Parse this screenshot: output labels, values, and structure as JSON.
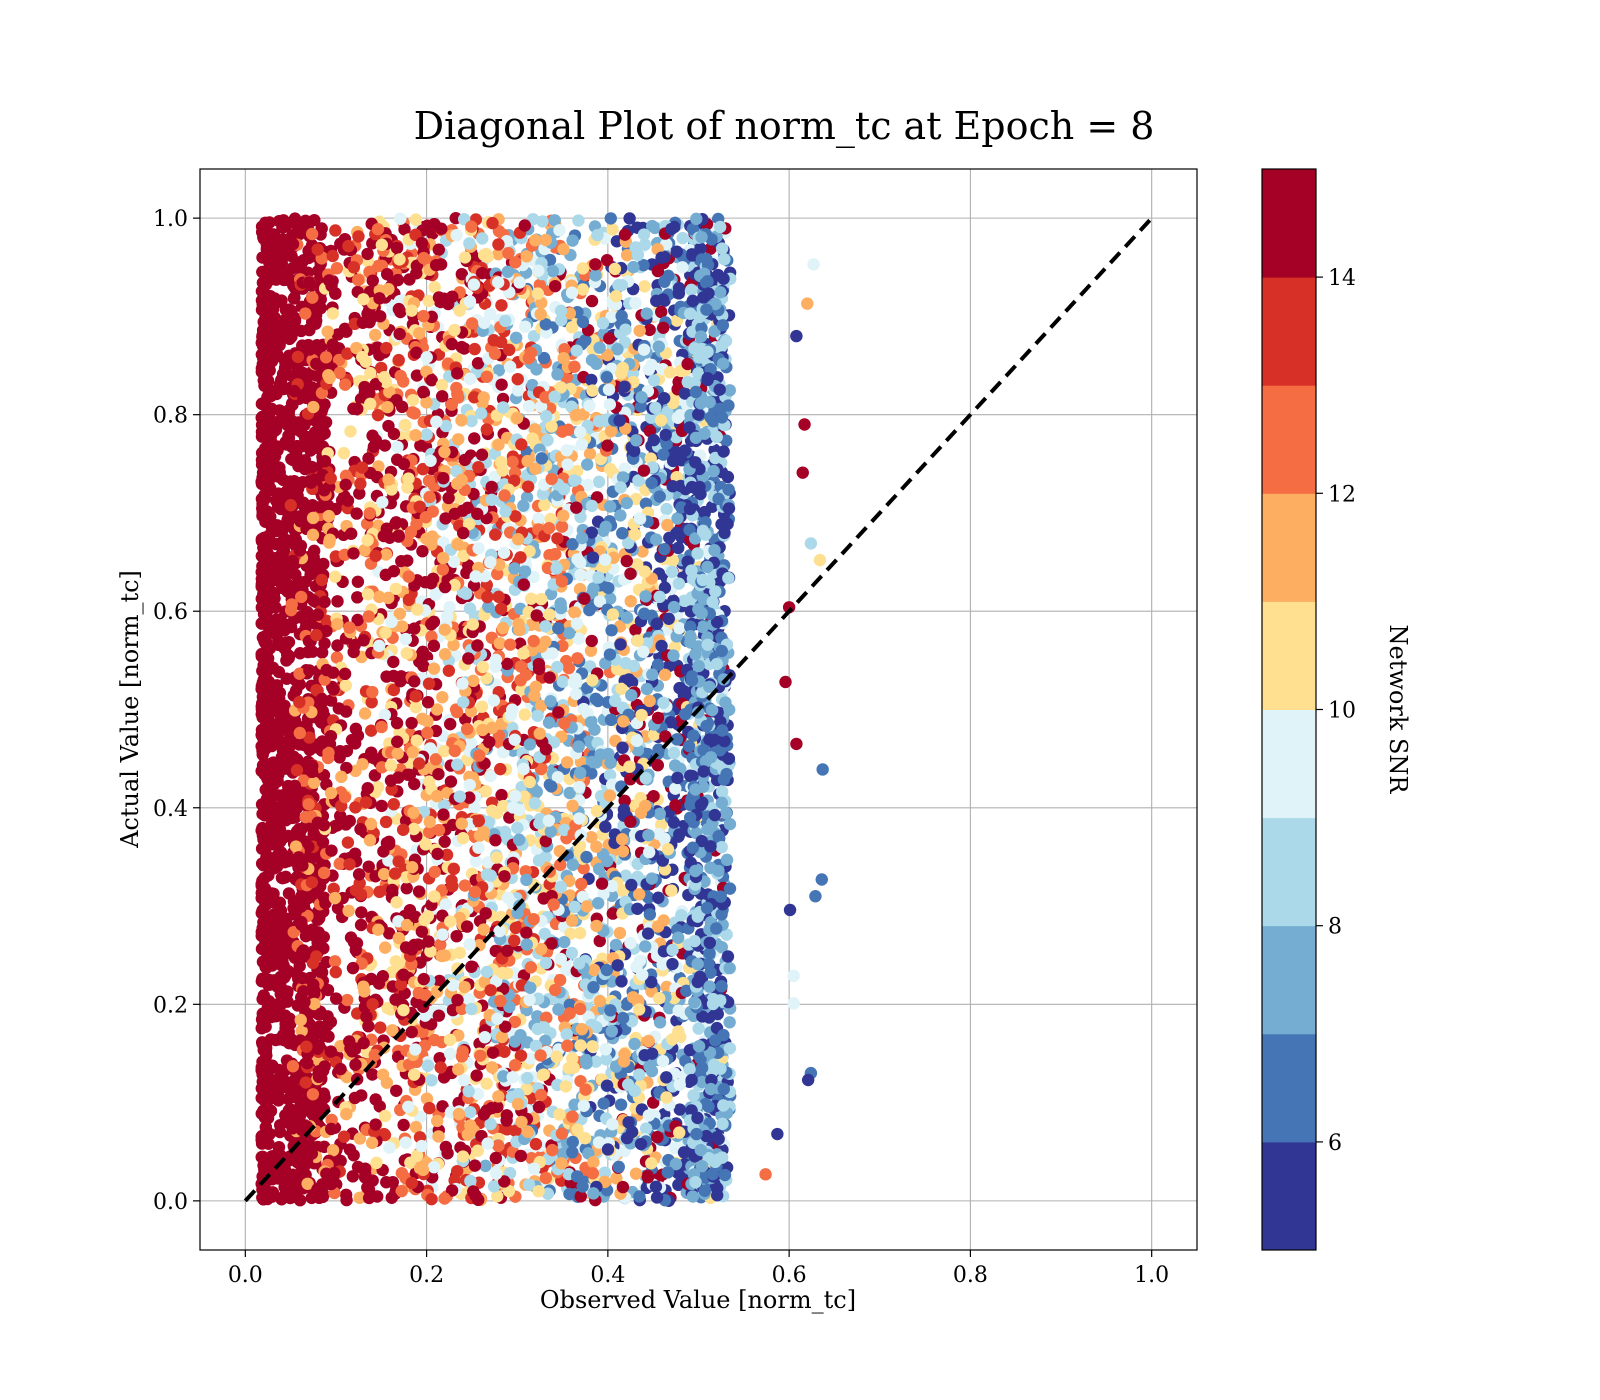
{
  "chart_data": {
    "type": "scatter",
    "title": "Diagonal Plot of norm_tc at Epoch = 8",
    "xlabel": "Observed Value [norm_tc]",
    "ylabel": "Actual Value [norm_tc]",
    "xlim": [
      -0.05,
      1.05
    ],
    "ylim": [
      -0.05,
      1.05
    ],
    "x_ticks": [
      "0.0",
      "0.2",
      "0.4",
      "0.6",
      "0.8",
      "1.0"
    ],
    "y_ticks": [
      "0.0",
      "0.2",
      "0.4",
      "0.6",
      "0.8",
      "1.0"
    ],
    "grid": true,
    "reference_line": {
      "style": "dashed",
      "color": "#000000",
      "from": [
        0,
        0
      ],
      "to": [
        1,
        1
      ]
    },
    "colorbar": {
      "label": "Network SNR",
      "range": [
        5,
        15
      ],
      "ticks": [
        "6",
        "8",
        "10",
        "12",
        "14"
      ],
      "colors": [
        "#313695",
        "#4575b4",
        "#74add1",
        "#abd9e9",
        "#e0f3f8",
        "#fee090",
        "#fdae61",
        "#f46d43",
        "#d73027",
        "#a50026"
      ]
    },
    "point_distribution": {
      "x_range": [
        0.02,
        0.55
      ],
      "y_range": [
        0.0,
        1.0
      ],
      "outliers_x_max": 0.64,
      "snr_trend": "high SNR (~15) near x=0.02-0.08, decreasing to low SNR (~5-8) near x=0.5",
      "sample_outliers": [
        {
          "x": 0.627,
          "y": 0.953,
          "snr": 9
        },
        {
          "x": 0.62,
          "y": 0.913,
          "snr": 11
        },
        {
          "x": 0.608,
          "y": 0.88,
          "snr": 5.5
        },
        {
          "x": 0.617,
          "y": 0.79,
          "snr": 14.8
        },
        {
          "x": 0.615,
          "y": 0.741,
          "snr": 14.8
        },
        {
          "x": 0.624,
          "y": 0.669,
          "snr": 8
        },
        {
          "x": 0.634,
          "y": 0.652,
          "snr": 10.5
        },
        {
          "x": 0.6,
          "y": 0.604,
          "snr": 14.8
        },
        {
          "x": 0.596,
          "y": 0.528,
          "snr": 14.8
        },
        {
          "x": 0.608,
          "y": 0.465,
          "snr": 14.8
        },
        {
          "x": 0.637,
          "y": 0.439,
          "snr": 6.5
        },
        {
          "x": 0.636,
          "y": 0.327,
          "snr": 6.5
        },
        {
          "x": 0.629,
          "y": 0.31,
          "snr": 6.5
        },
        {
          "x": 0.601,
          "y": 0.296,
          "snr": 5.5
        },
        {
          "x": 0.605,
          "y": 0.229,
          "snr": 9
        },
        {
          "x": 0.605,
          "y": 0.201,
          "snr": 9
        },
        {
          "x": 0.624,
          "y": 0.13,
          "snr": 6.5
        },
        {
          "x": 0.621,
          "y": 0.123,
          "snr": 5.5
        },
        {
          "x": 0.587,
          "y": 0.068,
          "snr": 5.5
        },
        {
          "x": 0.574,
          "y": 0.027,
          "snr": 12.5
        }
      ]
    }
  }
}
